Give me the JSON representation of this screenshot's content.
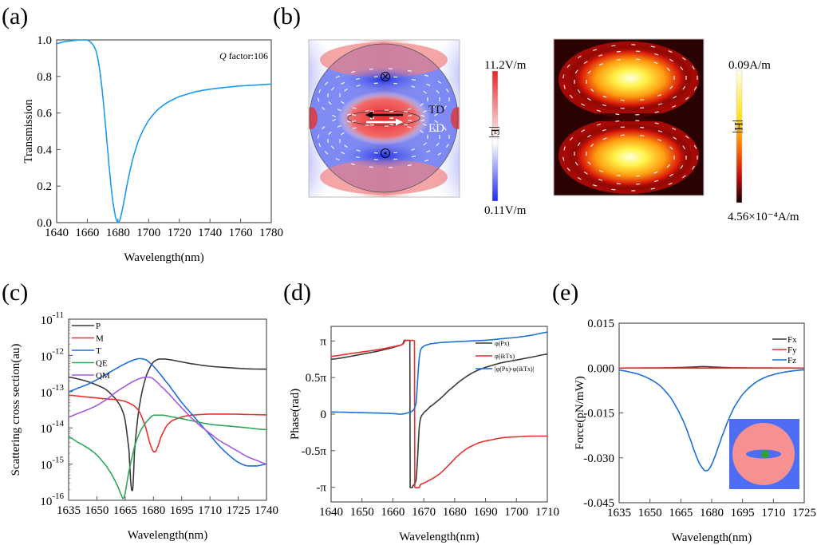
{
  "panels": {
    "a": {
      "label": "(a)"
    },
    "b": {
      "label": "(b)"
    },
    "c": {
      "label": "(c)"
    },
    "d": {
      "label": "(d)"
    },
    "e": {
      "label": "(e)"
    }
  },
  "field_maps": {
    "e_field": {
      "colorbar_max": "11.2V/m",
      "colorbar_min": "0.11V/m",
      "colorbar_symbol": "|E|",
      "annotations": [
        "TD",
        "ED"
      ],
      "colors": {
        "high": "#e8262a",
        "mid": "#ffffff",
        "low": "#1f2cf0"
      }
    },
    "h_field": {
      "colorbar_max": "0.09A/m",
      "colorbar_min": "4.56×10⁻⁴A/m",
      "colorbar_symbol": "|H|",
      "colors": {
        "high": "#ffffd0",
        "mid": "#e8200a",
        "low": "#1a0000"
      }
    }
  },
  "inset_e": {
    "colors": {
      "background": "#4d6df5",
      "sphere": "#f79191",
      "ellipse": "#4d6df5",
      "dot": "#2ca52c"
    }
  },
  "chart_data": [
    {
      "id": "a",
      "type": "line",
      "title": "",
      "annotation": "Q factor:106",
      "annotation_italic": "Q",
      "annotation_rest": " factor:106",
      "xlabel": "Wavelength(nm)",
      "ylabel": "Transmission",
      "xlim": [
        1640,
        1780
      ],
      "ylim": [
        0,
        1.0
      ],
      "xticks": [
        1640,
        1660,
        1680,
        1700,
        1720,
        1740,
        1760,
        1780
      ],
      "yticks": [
        0.0,
        0.2,
        0.4,
        0.6,
        0.8,
        1.0
      ],
      "ytick_labels": [
        "0.0",
        "0.2",
        "0.4",
        "0.6",
        "0.8",
        "1.0"
      ],
      "series": [
        {
          "name": "Transmission",
          "color": "#1a9bf0",
          "x": [
            1640,
            1645,
            1650,
            1655,
            1658,
            1661,
            1664,
            1666,
            1668,
            1670,
            1672,
            1674,
            1676,
            1678,
            1679,
            1680,
            1681,
            1682,
            1684,
            1686,
            1688,
            1690,
            1693,
            1696,
            1700,
            1705,
            1710,
            1715,
            1720,
            1730,
            1740,
            1750,
            1760,
            1770,
            1780
          ],
          "y": [
            0.98,
            0.99,
            0.995,
            1.0,
            1.0,
            0.995,
            0.97,
            0.93,
            0.84,
            0.7,
            0.52,
            0.33,
            0.16,
            0.05,
            0.015,
            0.0,
            0.01,
            0.04,
            0.12,
            0.21,
            0.29,
            0.36,
            0.44,
            0.5,
            0.56,
            0.61,
            0.645,
            0.67,
            0.69,
            0.715,
            0.73,
            0.74,
            0.748,
            0.753,
            0.758
          ]
        }
      ]
    },
    {
      "id": "c",
      "type": "line",
      "title": "",
      "xlabel": "Wavelength(nm)",
      "ylabel": "Scattering cross section(au)",
      "yscale": "log",
      "xlim": [
        1635,
        1740
      ],
      "ylim": [
        1e-16,
        1e-11
      ],
      "xticks": [
        1635,
        1650,
        1665,
        1680,
        1695,
        1710,
        1725,
        1740
      ],
      "yticks_exp": [
        -11,
        -12,
        -13,
        -14,
        -15,
        -16
      ],
      "legend_position": "top-left",
      "series": [
        {
          "name": "P",
          "color": "#3a3a3a",
          "x": [
            1635,
            1640,
            1645,
            1650,
            1655,
            1660,
            1663,
            1665,
            1667,
            1668,
            1669,
            1670,
            1672,
            1674,
            1676,
            1678,
            1680,
            1683,
            1686,
            1690,
            1695,
            1700,
            1710,
            1720,
            1730,
            1740
          ],
          "logy": [
            -12.6,
            -12.65,
            -12.72,
            -12.82,
            -12.95,
            -13.2,
            -13.45,
            -13.8,
            -14.6,
            -15.5,
            -15.7,
            -14.6,
            -13.6,
            -13.0,
            -12.6,
            -12.35,
            -12.18,
            -12.1,
            -12.1,
            -12.13,
            -12.18,
            -12.23,
            -12.3,
            -12.34,
            -12.37,
            -12.38
          ]
        },
        {
          "name": "M",
          "color": "#e8312f",
          "x": [
            1635,
            1645,
            1655,
            1660,
            1665,
            1670,
            1673,
            1676,
            1678,
            1680,
            1681,
            1682,
            1684,
            1687,
            1690,
            1695,
            1700,
            1710,
            1720,
            1730,
            1740
          ],
          "logy": [
            -13.1,
            -13.15,
            -13.2,
            -13.22,
            -13.27,
            -13.4,
            -13.6,
            -14.0,
            -14.4,
            -14.65,
            -14.66,
            -14.55,
            -14.25,
            -13.95,
            -13.8,
            -13.7,
            -13.65,
            -13.62,
            -13.62,
            -13.63,
            -13.64
          ]
        },
        {
          "name": "T",
          "color": "#1d6fdc",
          "x": [
            1635,
            1640,
            1645,
            1650,
            1655,
            1660,
            1665,
            1670,
            1673,
            1676,
            1678,
            1680,
            1683,
            1686,
            1690,
            1695,
            1700,
            1705,
            1710,
            1715,
            1720,
            1725,
            1730,
            1735,
            1740
          ],
          "logy": [
            -13.0,
            -12.9,
            -12.8,
            -12.67,
            -12.52,
            -12.37,
            -12.23,
            -12.12,
            -12.09,
            -12.12,
            -12.2,
            -12.3,
            -12.48,
            -12.68,
            -12.95,
            -13.3,
            -13.6,
            -13.9,
            -14.2,
            -14.5,
            -14.75,
            -14.95,
            -15.05,
            -15.05,
            -15.0
          ]
        },
        {
          "name": "QE",
          "color": "#2fa85a",
          "x": [
            1635,
            1640,
            1645,
            1650,
            1655,
            1658,
            1661,
            1663,
            1664,
            1665,
            1666,
            1667,
            1668,
            1670,
            1673,
            1676,
            1680,
            1685,
            1690,
            1700,
            1710,
            1720,
            1730,
            1740
          ],
          "logy": [
            -14.25,
            -14.4,
            -14.55,
            -14.75,
            -15.05,
            -15.3,
            -15.6,
            -15.85,
            -15.95,
            -15.8,
            -15.5,
            -15.2,
            -14.95,
            -14.5,
            -14.1,
            -13.85,
            -13.65,
            -13.65,
            -13.7,
            -13.8,
            -13.9,
            -13.95,
            -14.0,
            -14.05
          ]
        },
        {
          "name": "QM",
          "color": "#a35be0",
          "x": [
            1635,
            1640,
            1645,
            1650,
            1655,
            1660,
            1665,
            1670,
            1674,
            1677,
            1679,
            1681,
            1684,
            1688,
            1692,
            1696,
            1700,
            1705,
            1710,
            1715,
            1720,
            1725,
            1730,
            1735,
            1740
          ],
          "logy": [
            -13.7,
            -13.6,
            -13.5,
            -13.38,
            -13.22,
            -13.02,
            -12.85,
            -12.7,
            -12.62,
            -12.6,
            -12.62,
            -12.7,
            -12.85,
            -13.05,
            -13.28,
            -13.5,
            -13.72,
            -13.95,
            -14.15,
            -14.35,
            -14.5,
            -14.65,
            -14.8,
            -14.9,
            -15.0
          ]
        }
      ]
    },
    {
      "id": "d",
      "type": "line",
      "title": "",
      "xlabel": "Wavelength(nm)",
      "ylabel": "Phase(rad)",
      "xlim": [
        1640,
        1710
      ],
      "ylim_pi": [
        -1.2,
        1.2
      ],
      "xticks": [
        1640,
        1650,
        1660,
        1670,
        1680,
        1690,
        1700,
        1710
      ],
      "yticks_pi": [
        1,
        0.5,
        0,
        -0.5,
        -1
      ],
      "ytick_labels": [
        "π",
        "0.5π",
        "0",
        "-0.5π",
        "-π"
      ],
      "legend_position": "top-right",
      "series": [
        {
          "name": "φ(Px)",
          "color": "#3a3a3a",
          "x": [
            1640,
            1645,
            1650,
            1655,
            1660,
            1663,
            1665.5,
            1665.6,
            1666.5,
            1667.5,
            1668,
            1668.5,
            1669,
            1670,
            1672,
            1675,
            1678,
            1682,
            1686,
            1690,
            1695,
            1700,
            1705,
            1710
          ],
          "y_pi": [
            0.75,
            0.78,
            0.82,
            0.86,
            0.91,
            0.95,
            1.0,
            -1.0,
            -0.98,
            -0.9,
            -0.6,
            -0.2,
            -0.05,
            0.02,
            0.1,
            0.2,
            0.32,
            0.46,
            0.57,
            0.64,
            0.7,
            0.74,
            0.78,
            0.82
          ]
        },
        {
          "name": "φ(ikTx)",
          "color": "#e8312f",
          "x": [
            1640,
            1645,
            1650,
            1655,
            1660,
            1663,
            1667,
            1667.1,
            1669,
            1672,
            1675,
            1678,
            1681,
            1684,
            1688,
            1692,
            1696,
            1700,
            1705,
            1710
          ],
          "y_pi": [
            0.79,
            0.82,
            0.85,
            0.88,
            0.92,
            0.95,
            1.0,
            -1.0,
            -0.96,
            -0.9,
            -0.82,
            -0.7,
            -0.57,
            -0.47,
            -0.39,
            -0.35,
            -0.32,
            -0.31,
            -0.3,
            -0.3
          ]
        },
        {
          "name": "|φ(Px)-φ(ikTx)|",
          "color": "#1d6fdc",
          "x": [
            1640,
            1645,
            1650,
            1655,
            1660,
            1663,
            1665,
            1666.5,
            1667.5,
            1668,
            1668.5,
            1669,
            1670,
            1672,
            1676,
            1680,
            1685,
            1690,
            1695,
            1700,
            1705,
            1710
          ],
          "y_pi": [
            0.03,
            0.025,
            0.02,
            0.015,
            0.008,
            0.0,
            0.02,
            0.05,
            0.15,
            0.45,
            0.75,
            0.88,
            0.93,
            0.96,
            0.98,
            0.99,
            1.0,
            1.01,
            1.03,
            1.05,
            1.08,
            1.12
          ]
        }
      ]
    },
    {
      "id": "e",
      "type": "line",
      "title": "",
      "xlabel": "Wavelength(nm)",
      "ylabel": "Force(pN/mW)",
      "xlim": [
        1635,
        1725
      ],
      "ylim": [
        -0.045,
        0.015
      ],
      "xticks": [
        1635,
        1650,
        1665,
        1680,
        1695,
        1710,
        1725
      ],
      "yticks": [
        0.015,
        0.0,
        -0.015,
        -0.03,
        -0.045
      ],
      "ytick_labels": [
        "0.015",
        "0.000",
        "-0.015",
        "-0.030",
        "-0.045"
      ],
      "legend_position": "top-right",
      "series": [
        {
          "name": "Fx",
          "color": "#3a3a3a",
          "x": [
            1635,
            1660,
            1670,
            1676,
            1682,
            1690,
            1725
          ],
          "y": [
            0.0,
            0.0001,
            0.0003,
            0.0005,
            0.0003,
            0.0001,
            0.0
          ]
        },
        {
          "name": "Fy",
          "color": "#e8312f",
          "x": [
            1635,
            1725
          ],
          "y": [
            0.0,
            0.0
          ]
        },
        {
          "name": "Fz",
          "color": "#1d6fdc",
          "x": [
            1635,
            1640,
            1645,
            1650,
            1655,
            1660,
            1664,
            1667,
            1670,
            1672,
            1674,
            1676,
            1677,
            1678,
            1679,
            1680,
            1681,
            1683,
            1685,
            1688,
            1691,
            1695,
            1700,
            1705,
            1710,
            1715,
            1720,
            1725
          ],
          "y": [
            -0.0007,
            -0.0013,
            -0.0022,
            -0.0037,
            -0.006,
            -0.0098,
            -0.0145,
            -0.019,
            -0.0245,
            -0.0285,
            -0.0318,
            -0.0338,
            -0.0343,
            -0.0342,
            -0.0335,
            -0.0322,
            -0.0305,
            -0.0268,
            -0.0228,
            -0.0175,
            -0.013,
            -0.0088,
            -0.0055,
            -0.0034,
            -0.0022,
            -0.0014,
            -0.0009,
            -0.0006
          ]
        }
      ]
    }
  ]
}
